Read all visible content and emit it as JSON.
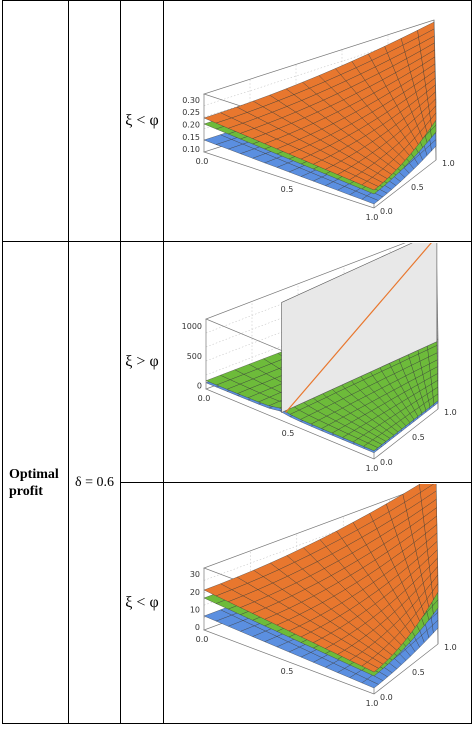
{
  "table": {
    "row_label": "Optimal profit",
    "row_label_line1": "Optimal",
    "row_label_line2": "profit",
    "delta_label": "δ = 0.6",
    "rows": [
      {
        "condition": "ξ < φ",
        "plot": {
          "z_ticks": [
            "0.30",
            "0.25",
            "0.20",
            "0.15",
            "0.10"
          ],
          "x_ticks": [
            "0.0",
            "0.5",
            "1.0"
          ],
          "y_ticks": [
            "1.0",
            "0.5",
            "0.0"
          ],
          "surfaces": [
            "orange",
            "green",
            "blue"
          ]
        }
      },
      {
        "condition": "ξ > φ",
        "plot": {
          "z_ticks": [
            "1000",
            "500",
            "0"
          ],
          "x_ticks": [
            "0.0",
            "0.5",
            "1.0"
          ],
          "y_ticks": [
            "1.0",
            "0.5",
            "0.0"
          ],
          "surfaces": [
            "orange",
            "green",
            "blue"
          ]
        }
      },
      {
        "condition": "ξ < φ",
        "plot": {
          "z_ticks": [
            "30",
            "20",
            "10",
            "0"
          ],
          "x_ticks": [
            "0.0",
            "0.5",
            "1.0"
          ],
          "y_ticks": [
            "1.0",
            "0.5",
            "0.0"
          ],
          "surfaces": [
            "orange",
            "green",
            "blue"
          ]
        }
      }
    ]
  },
  "colors": {
    "orange": "#e8772e",
    "green": "#6dbb3a",
    "blue": "#5b8fe0",
    "border": "#000000"
  }
}
